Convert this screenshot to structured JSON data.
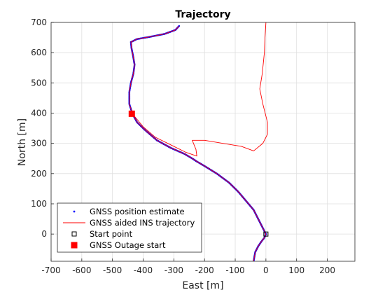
{
  "chart_data": {
    "type": "line",
    "title": "Trajectory",
    "xlabel": "East [m]",
    "ylabel": "North [m]",
    "xlim": [
      -700,
      290
    ],
    "ylim": [
      -90,
      700
    ],
    "xticks": [
      -700,
      -600,
      -500,
      -400,
      -300,
      -200,
      -100,
      0,
      100,
      200
    ],
    "yticks": [
      0,
      100,
      200,
      300,
      400,
      500,
      600,
      700
    ],
    "grid": true,
    "legend_position": "bottom-left",
    "legend": [
      {
        "label": "GNSS position estimate",
        "marker": "dot",
        "color": "#0000ff"
      },
      {
        "label": "GNSS aided INS trajectory",
        "marker": "line",
        "color": "#ff0000"
      },
      {
        "label": "Start point",
        "marker": "open-square",
        "color": "#000000"
      },
      {
        "label": "GNSS Outage start",
        "marker": "filled-square",
        "color": "#ff0000"
      }
    ],
    "series": [
      {
        "name": "GNSS position estimate",
        "color": "#0000ff",
        "points": [
          [
            -40,
            -90
          ],
          [
            -35,
            -60
          ],
          [
            -25,
            -40
          ],
          [
            -15,
            -25
          ],
          [
            -5,
            -12
          ],
          [
            0,
            0
          ],
          [
            -10,
            20
          ],
          [
            -25,
            50
          ],
          [
            -40,
            80
          ],
          [
            -65,
            110
          ],
          [
            -90,
            140
          ],
          [
            -120,
            170
          ],
          [
            -160,
            200
          ],
          [
            -200,
            225
          ],
          [
            -225,
            240
          ],
          [
            -240,
            250
          ],
          [
            -265,
            265
          ],
          [
            -310,
            285
          ],
          [
            -355,
            310
          ],
          [
            -395,
            345
          ],
          [
            -420,
            370
          ],
          [
            -435,
            398
          ],
          [
            -445,
            430
          ],
          [
            -445,
            470
          ],
          [
            -440,
            500
          ],
          [
            -432,
            530
          ],
          [
            -428,
            560
          ],
          [
            -433,
            590
          ],
          [
            -438,
            615
          ],
          [
            -440,
            635
          ],
          [
            -420,
            645
          ],
          [
            -380,
            652
          ],
          [
            -330,
            662
          ],
          [
            -295,
            675
          ],
          [
            -283,
            688
          ]
        ]
      },
      {
        "name": "GNSS aided INS trajectory",
        "color": "#ff0000",
        "points": [
          [
            -40,
            -90
          ],
          [
            -35,
            -60
          ],
          [
            -25,
            -40
          ],
          [
            -15,
            -25
          ],
          [
            -5,
            -12
          ],
          [
            0,
            0
          ],
          [
            -10,
            20
          ],
          [
            -25,
            50
          ],
          [
            -40,
            80
          ],
          [
            -65,
            110
          ],
          [
            -90,
            140
          ],
          [
            -120,
            170
          ],
          [
            -160,
            200
          ],
          [
            -200,
            225
          ],
          [
            -225,
            240
          ],
          [
            -240,
            250
          ],
          [
            -265,
            265
          ],
          [
            -310,
            285
          ],
          [
            -355,
            310
          ],
          [
            -395,
            345
          ],
          [
            -420,
            370
          ],
          [
            -435,
            398
          ],
          [
            -445,
            430
          ],
          [
            -445,
            470
          ],
          [
            -440,
            500
          ],
          [
            -432,
            530
          ],
          [
            -428,
            560
          ],
          [
            -433,
            590
          ],
          [
            -438,
            615
          ],
          [
            -440,
            635
          ],
          [
            -420,
            645
          ],
          [
            -380,
            652
          ],
          [
            -330,
            662
          ],
          [
            -295,
            675
          ],
          [
            -283,
            688
          ]
        ]
      },
      {
        "name": "INS trajectory during GNSS outage",
        "color": "#ff0000",
        "points": [
          [
            -435,
            398
          ],
          [
            -400,
            355
          ],
          [
            -360,
            320
          ],
          [
            -310,
            295
          ],
          [
            -260,
            270
          ],
          [
            -225,
            258
          ],
          [
            -228,
            280
          ],
          [
            -240,
            310
          ],
          [
            -200,
            310
          ],
          [
            -140,
            300
          ],
          [
            -80,
            290
          ],
          [
            -40,
            275
          ],
          [
            -10,
            300
          ],
          [
            5,
            330
          ],
          [
            5,
            370
          ],
          [
            -10,
            430
          ],
          [
            -20,
            480
          ],
          [
            -12,
            530
          ],
          [
            -5,
            600
          ],
          [
            -3,
            650
          ],
          [
            0,
            700
          ]
        ]
      }
    ],
    "markers": [
      {
        "name": "Start point",
        "x": 0,
        "y": 0,
        "shape": "open-square",
        "color": "#000000"
      },
      {
        "name": "GNSS Outage start",
        "x": -437,
        "y": 398,
        "shape": "filled-square",
        "color": "#ff0000"
      }
    ]
  }
}
